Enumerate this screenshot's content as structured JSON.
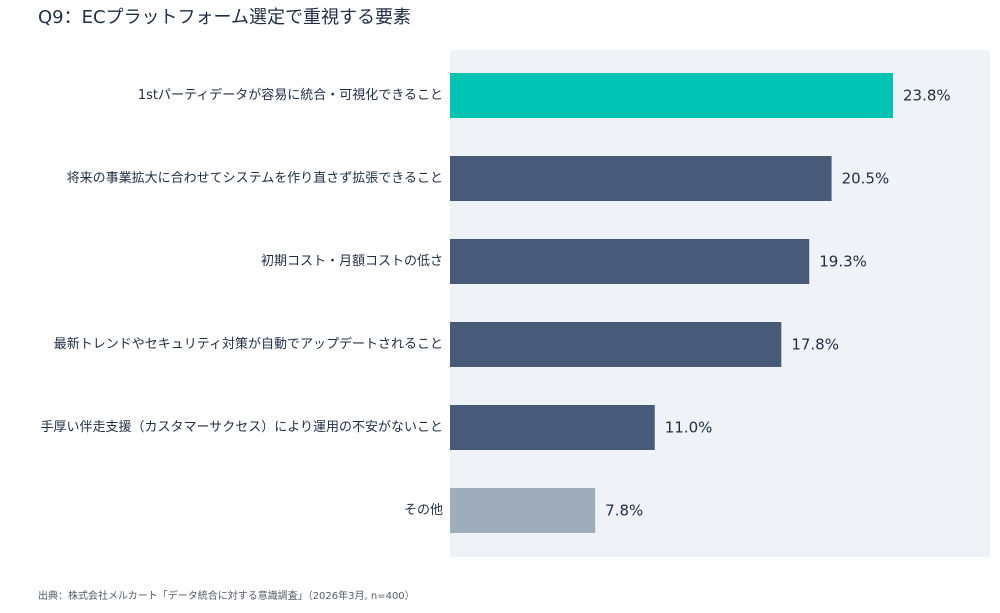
{
  "title": "Q9：ECプラットフォーム選定で重視する要素",
  "footer": "出典：株式会社メルカート「データ統合に対する意識調査」（2026年3月, n=400）",
  "colors": {
    "highlight": "#00c4b3",
    "default": "#485a7a",
    "other": "#9fadba",
    "plot_background": "#eff3f8",
    "text": "#1f2d45"
  },
  "chart_data": {
    "type": "bar",
    "orientation": "horizontal",
    "categories": [
      "1stパーティデータが容易に統合・可視化できること",
      "将来の事業拡大に合わせてシステムを作り直さず拡張できること",
      "初期コスト・月額コストの低さ",
      "最新トレンドやセキュリティ対策が自動でアップデートされること",
      "手厚い伴走支援（カスタマーサクセス）により運用の不安がないこと",
      "その他"
    ],
    "values": [
      23.8,
      20.5,
      19.3,
      17.8,
      11.0,
      7.8
    ],
    "value_labels": [
      "23.8%",
      "20.5%",
      "19.3%",
      "17.8%",
      "11.0%",
      "7.8%"
    ],
    "bar_color_keys": [
      "highlight",
      "default",
      "default",
      "default",
      "default",
      "other"
    ],
    "xlim": [
      0,
      23.8
    ],
    "title": "Q9：ECプラットフォーム選定で重視する要素",
    "xlabel": "",
    "ylabel": "",
    "grid": false,
    "legend": "none"
  }
}
